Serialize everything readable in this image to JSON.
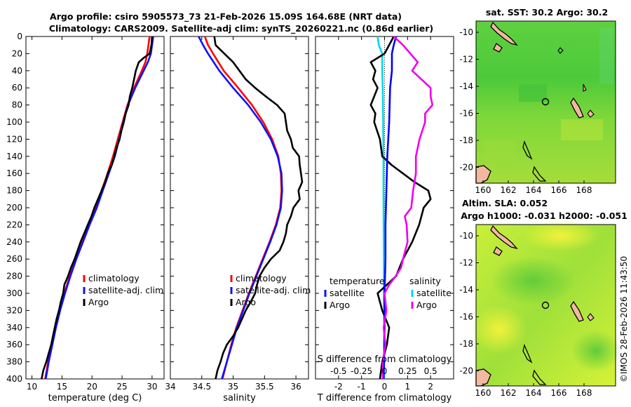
{
  "header": {
    "title_line1": "Argo profile: csiro 5905573_73 21-Feb-2026 15.09S 164.68E (NRT data)",
    "title_line2": "Climatology: CARS2009. Satellite-adj clim: synTS_20260221.nc (0.86d earlier)"
  },
  "watermark": "©IMOS 28-Feb-2026 11:43:50",
  "colors": {
    "climatology": "#ff0000",
    "satellite": "#1010ff",
    "argo": "#000000",
    "t_sat": "#00d8e8",
    "s_argo": "#ee00ee",
    "s_sat": "#0000ff",
    "axis": "#000000"
  },
  "chart_data": [
    {
      "type": "line",
      "xlabel": "temperature (deg C)",
      "ylabel": "",
      "xlim": [
        9,
        32
      ],
      "ylim": [
        400,
        0
      ],
      "x_ticks": [
        "10",
        "15",
        "20",
        "25",
        "30"
      ],
      "y_ticks": [
        "0",
        "20",
        "40",
        "60",
        "80",
        "100",
        "120",
        "140",
        "160",
        "180",
        "200",
        "220",
        "240",
        "260",
        "280",
        "300",
        "320",
        "340",
        "360",
        "380",
        "400"
      ],
      "legend": [
        "climatology",
        "satellite-adj. clim",
        "Argo"
      ],
      "series": [
        {
          "name": "climatology",
          "color": "climatology",
          "depth": [
            0,
            10,
            20,
            30,
            40,
            60,
            80,
            100,
            120,
            140,
            160,
            180,
            200,
            220,
            240,
            260,
            280,
            300,
            320,
            340,
            360,
            380,
            400
          ],
          "values": [
            29.6,
            29.4,
            29.2,
            28.9,
            28.3,
            27.0,
            25.9,
            25.1,
            24.3,
            23.5,
            22.6,
            21.6,
            20.6,
            19.5,
            18.4,
            17.3,
            16.3,
            15.4,
            14.6,
            13.9,
            13.3,
            12.7,
            12.2
          ]
        },
        {
          "name": "satellite-adj. clim",
          "color": "satellite",
          "depth": [
            0,
            10,
            20,
            30,
            40,
            60,
            80,
            100,
            120,
            140,
            160,
            180,
            200,
            220,
            240,
            260,
            280,
            300,
            320,
            340,
            360,
            380,
            400
          ],
          "values": [
            30.2,
            30.0,
            29.8,
            29.3,
            28.6,
            27.2,
            26.0,
            25.2,
            24.5,
            23.8,
            22.8,
            21.8,
            20.8,
            19.6,
            18.5,
            17.4,
            16.4,
            15.5,
            14.7,
            14.0,
            13.4,
            12.8,
            12.3
          ]
        },
        {
          "name": "Argo",
          "color": "argo",
          "depth": [
            0,
            10,
            20,
            25,
            30,
            40,
            50,
            60,
            70,
            80,
            90,
            100,
            110,
            120,
            130,
            140,
            150,
            160,
            170,
            180,
            190,
            200,
            210,
            220,
            230,
            240,
            250,
            260,
            270,
            280,
            290,
            300,
            310,
            320,
            330,
            340,
            350,
            360,
            370,
            380,
            390,
            400
          ],
          "values": [
            30.0,
            29.9,
            29.6,
            28.6,
            27.8,
            27.3,
            27.0,
            26.7,
            26.3,
            26.1,
            25.6,
            25.3,
            24.9,
            24.6,
            24.1,
            23.7,
            23.3,
            22.6,
            22.2,
            21.6,
            21.0,
            20.4,
            19.9,
            19.3,
            18.7,
            18.1,
            17.6,
            17.1,
            16.5,
            16.0,
            15.4,
            15.2,
            14.8,
            14.5,
            14.1,
            13.8,
            13.5,
            13.2,
            12.8,
            12.4,
            11.9,
            11.6
          ]
        }
      ]
    },
    {
      "type": "line",
      "xlabel": "salinity",
      "ylabel": "",
      "xlim": [
        34.0,
        36.2
      ],
      "ylim": [
        400,
        0
      ],
      "x_ticks": [
        "34",
        "34.5",
        "35",
        "35.5",
        "36"
      ],
      "legend": [
        "climatology",
        "satellite-adj. clim",
        "Argo"
      ],
      "series": [
        {
          "name": "climatology",
          "color": "climatology",
          "depth": [
            0,
            10,
            20,
            40,
            60,
            80,
            100,
            120,
            140,
            160,
            180,
            200,
            220,
            240,
            260,
            280,
            300,
            320,
            340,
            360,
            380,
            400
          ],
          "values": [
            34.55,
            34.6,
            34.68,
            34.85,
            35.08,
            35.3,
            35.48,
            35.62,
            35.72,
            35.76,
            35.77,
            35.75,
            35.68,
            35.58,
            35.47,
            35.36,
            35.25,
            35.15,
            35.05,
            34.97,
            34.9,
            34.83
          ]
        },
        {
          "name": "satellite-adj. clim",
          "color": "satellite",
          "depth": [
            0,
            10,
            20,
            40,
            60,
            80,
            100,
            120,
            140,
            160,
            180,
            200,
            220,
            240,
            260,
            280,
            300,
            320,
            340,
            360,
            380,
            400
          ],
          "values": [
            34.45,
            34.52,
            34.6,
            34.78,
            35.0,
            35.24,
            35.44,
            35.6,
            35.71,
            35.77,
            35.78,
            35.76,
            35.69,
            35.59,
            35.48,
            35.37,
            35.26,
            35.16,
            35.06,
            34.98,
            34.9,
            34.82
          ]
        },
        {
          "name": "Argo",
          "color": "argo",
          "depth": [
            0,
            10,
            20,
            30,
            40,
            50,
            60,
            70,
            80,
            90,
            100,
            110,
            120,
            130,
            140,
            150,
            160,
            170,
            180,
            190,
            200,
            210,
            220,
            230,
            240,
            250,
            260,
            270,
            280,
            290,
            300,
            310,
            320,
            330,
            340,
            350,
            360,
            370,
            380,
            390,
            400
          ],
          "values": [
            34.7,
            34.72,
            34.86,
            35.0,
            35.1,
            35.2,
            35.35,
            35.52,
            35.7,
            35.82,
            35.84,
            35.86,
            35.92,
            35.95,
            36.05,
            36.06,
            36.08,
            36.1,
            36.04,
            36.06,
            35.96,
            35.92,
            35.86,
            35.84,
            35.8,
            35.74,
            35.6,
            35.5,
            35.42,
            35.38,
            35.35,
            35.28,
            35.2,
            35.14,
            35.08,
            35.0,
            34.9,
            34.84,
            34.8,
            34.75,
            34.72
          ]
        }
      ]
    },
    {
      "type": "line",
      "xlabel": "T difference from climatology",
      "xlabel_top": "S difference from climatology",
      "xlim": [
        -3,
        3
      ],
      "ylim": [
        400,
        0
      ],
      "x_ticks": [
        "-2",
        "-1",
        "0",
        "1",
        "2"
      ],
      "top_ticks": [
        "-0.5",
        "-0.25",
        "0",
        "0.25",
        "0.5"
      ],
      "legend_left_title": "temperature",
      "legend_right_title": "salinity",
      "legend_left": [
        "satellite",
        "Argo"
      ],
      "legend_right": [
        "satellite",
        "Argo"
      ],
      "series": [
        {
          "name": "temperature satellite",
          "color": "t_sat",
          "depth": [
            0,
            10,
            20,
            40,
            60,
            100,
            140,
            180,
            220,
            260,
            300,
            340,
            380,
            400
          ],
          "values": [
            -0.3,
            -0.25,
            -0.1,
            -0.1,
            -0.08,
            -0.06,
            -0.05,
            -0.05,
            -0.04,
            -0.03,
            -0.03,
            -0.02,
            -0.02,
            -0.02
          ]
        },
        {
          "name": "temperature Argo",
          "color": "argo",
          "depth": [
            0,
            20,
            30,
            40,
            50,
            60,
            70,
            80,
            90,
            100,
            120,
            140,
            150,
            160,
            170,
            180,
            190,
            200,
            220,
            240,
            260,
            280,
            290,
            300,
            320,
            340,
            360,
            380,
            400
          ],
          "values": [
            0.4,
            0.0,
            -0.6,
            -0.4,
            -0.5,
            -0.3,
            -0.45,
            -0.6,
            -0.4,
            -0.45,
            -0.2,
            -0.1,
            0.3,
            0.8,
            1.3,
            1.9,
            2.0,
            1.7,
            1.5,
            1.2,
            0.8,
            0.5,
            0.1,
            -0.3,
            -0.1,
            0.2,
            0.1,
            -0.1,
            -0.2
          ]
        },
        {
          "name": "salinity satellite",
          "color": "s_sat",
          "depth": [
            0,
            10,
            20,
            40,
            60,
            100,
            140,
            180,
            220,
            260,
            300,
            340,
            380,
            400
          ],
          "values": [
            0.125,
            0.1,
            0.08,
            0.08,
            0.06,
            0.05,
            0.03,
            0.02,
            0.01,
            0.01,
            0.0,
            0.0,
            -0.005,
            -0.01
          ]
        },
        {
          "name": "salinity Argo",
          "color": "s_argo",
          "depth": [
            0,
            10,
            20,
            30,
            40,
            50,
            60,
            70,
            80,
            90,
            100,
            120,
            140,
            160,
            180,
            200,
            210,
            220,
            240,
            260,
            270,
            280,
            290,
            300,
            320,
            340,
            360,
            380,
            400
          ],
          "values": [
            0.1,
            0.2,
            0.28,
            0.36,
            0.3,
            0.4,
            0.5,
            0.5,
            0.52,
            0.44,
            0.44,
            0.38,
            0.34,
            0.34,
            0.31,
            0.29,
            0.22,
            0.24,
            0.25,
            0.2,
            0.18,
            0.12,
            0.05,
            0.0,
            0.02,
            -0.01,
            0.01,
            -0.02,
            -0.02
          ]
        }
      ]
    }
  ],
  "maps": [
    {
      "title": "sat. SST: 30.2 Argo: 30.2",
      "x_ticks": [
        "160",
        "162",
        "164",
        "166",
        "168"
      ],
      "y_ticks": [
        "-10",
        "-12",
        "-14",
        "-16",
        "-18",
        "-20"
      ]
    },
    {
      "title_line1": "Altim. SLA: 0.052",
      "title_line2": "Argo h1000: -0.031 h2000: -0.051",
      "x_ticks": [
        "160",
        "162",
        "164",
        "166",
        "168"
      ],
      "y_ticks": [
        "-10",
        "-12",
        "-14",
        "-16",
        "-18",
        "-20"
      ]
    }
  ]
}
